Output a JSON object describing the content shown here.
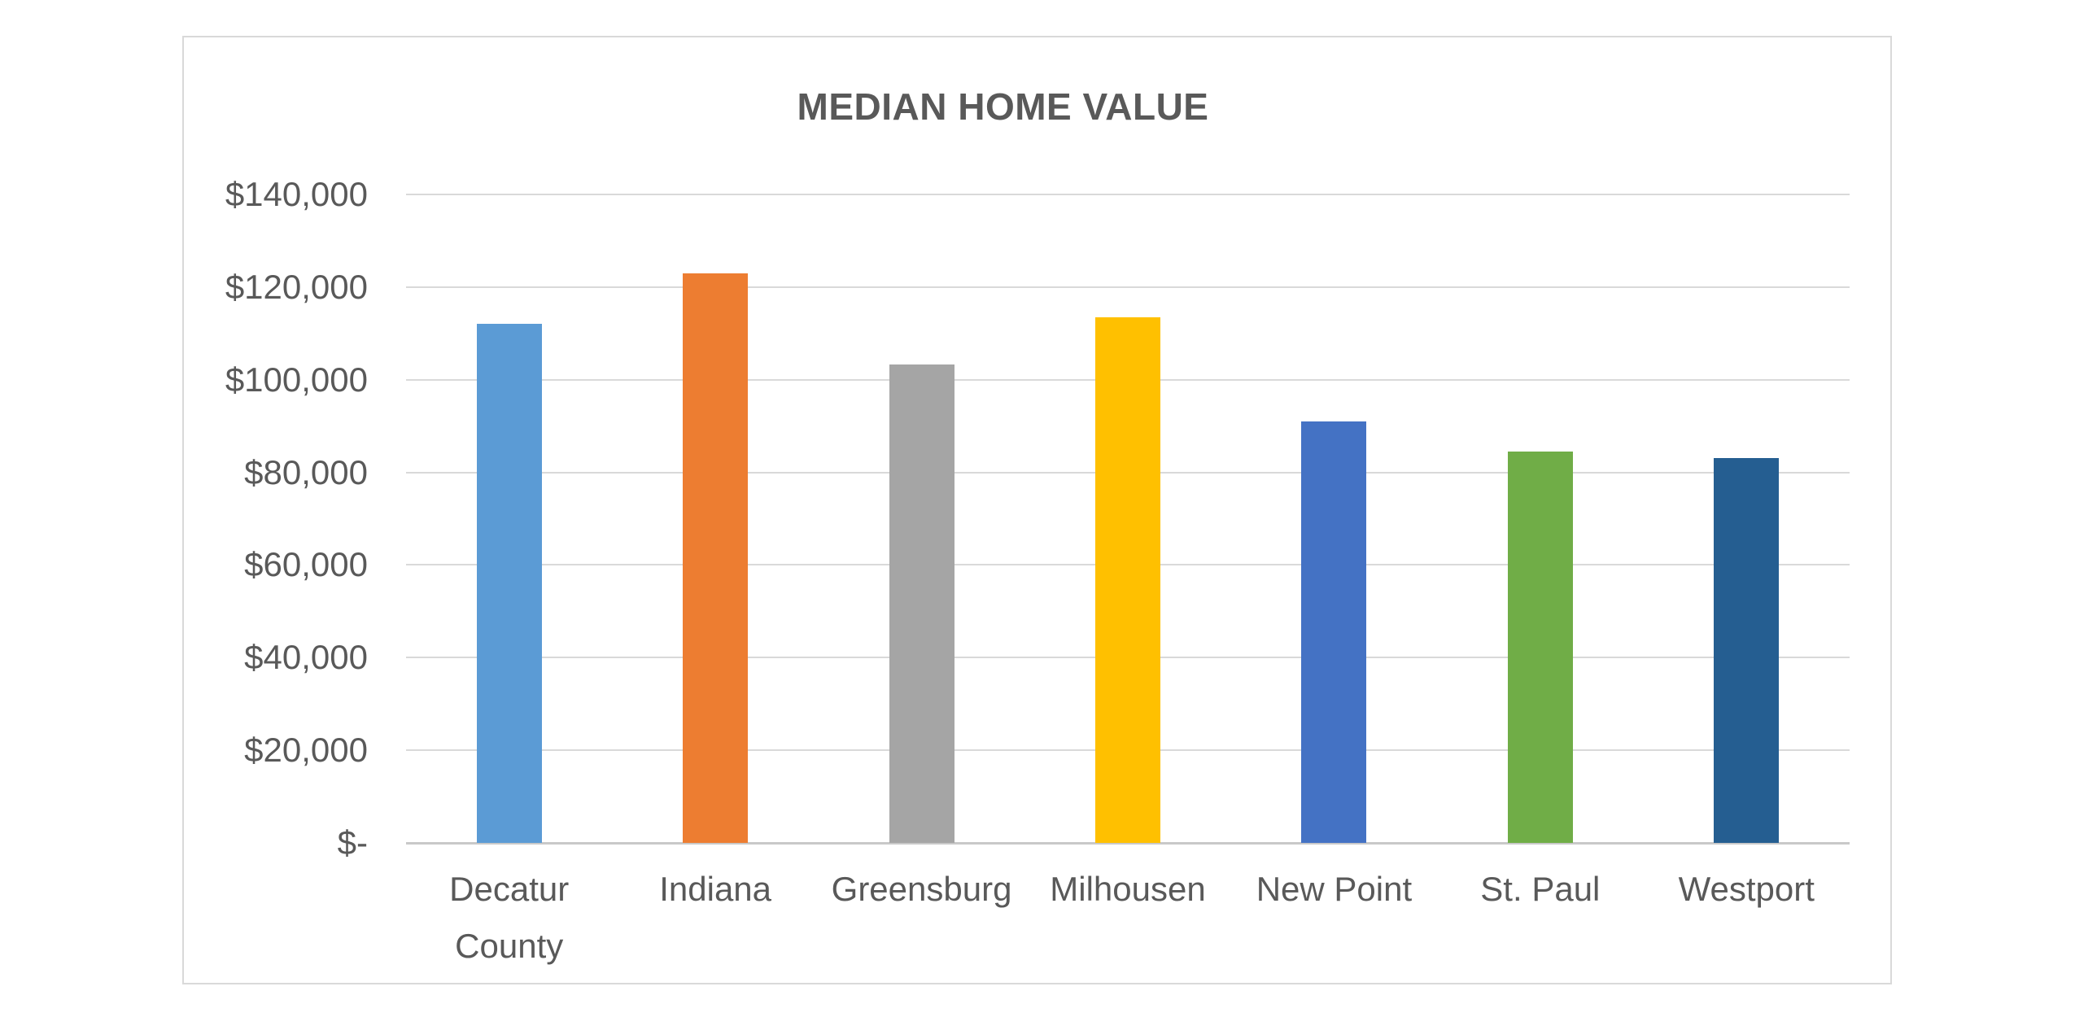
{
  "chart": {
    "background_color": "#FFFFFF",
    "border_color": "#D9D9D9",
    "grid_color": "#D9D9D9",
    "axis_line_color": "#C9C9C9",
    "text_color": "#595959"
  },
  "chart_data": {
    "type": "bar",
    "title": "MEDIAN HOME VALUE",
    "categories": [
      "Decatur County",
      "Indiana",
      "Greensburg",
      "Milhousen",
      "New Point",
      "St. Paul",
      "Westport"
    ],
    "values": [
      112000,
      123000,
      103300,
      113400,
      91000,
      84500,
      83000
    ],
    "bar_colors": [
      "#5B9BD5",
      "#ED7D31",
      "#A5A5A5",
      "#FFC000",
      "#4472C4",
      "#70AD47",
      "#255E91"
    ],
    "xlabel": "",
    "ylabel": "",
    "ylim": [
      0,
      140000
    ],
    "ytick_interval": 20000,
    "ytick_labels_top_to_bottom": [
      "$140,000",
      "$120,000",
      "$100,000",
      "$80,000",
      "$60,000",
      "$40,000",
      "$20,000",
      "$-"
    ],
    "grid": true,
    "legend_position": "none"
  }
}
